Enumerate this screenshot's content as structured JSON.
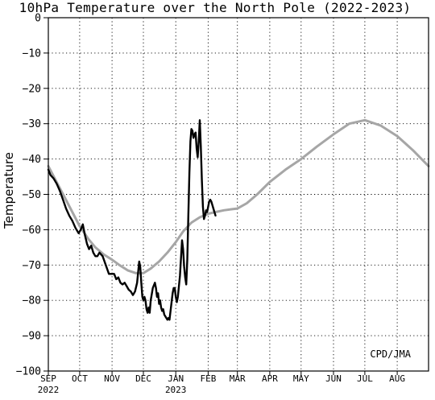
{
  "chart_data": {
    "type": "line",
    "title": "10hPa Temperature over the North Pole (2022-2023)",
    "xlabel": "",
    "ylabel": "Temperature",
    "ylim": [
      -100,
      0
    ],
    "yticks": [
      0,
      -10,
      -20,
      -30,
      -40,
      -50,
      -60,
      -70,
      -80,
      -90,
      -100
    ],
    "xlim": [
      "2022-09-01",
      "2023-08-31"
    ],
    "xticks": [
      {
        "date": "2022-09-01",
        "label": "SEP",
        "year": "2022"
      },
      {
        "date": "2022-10-01",
        "label": "OCT",
        "year": ""
      },
      {
        "date": "2022-11-01",
        "label": "NOV",
        "year": ""
      },
      {
        "date": "2022-12-01",
        "label": "DEC",
        "year": ""
      },
      {
        "date": "2023-01-01",
        "label": "JAN",
        "year": "2023"
      },
      {
        "date": "2023-02-01",
        "label": "FEB",
        "year": ""
      },
      {
        "date": "2023-03-01",
        "label": "MAR",
        "year": ""
      },
      {
        "date": "2023-04-01",
        "label": "APR",
        "year": ""
      },
      {
        "date": "2023-05-01",
        "label": "MAY",
        "year": ""
      },
      {
        "date": "2023-06-01",
        "label": "JUN",
        "year": ""
      },
      {
        "date": "2023-07-01",
        "label": "JUL",
        "year": ""
      },
      {
        "date": "2023-08-01",
        "label": "AUG",
        "year": ""
      }
    ],
    "grid": true,
    "credit": "CPD/JMA",
    "series": [
      {
        "color": "#a6a6a6",
        "x": [
          "2022-09-01",
          "2022-09-08",
          "2022-09-16",
          "2022-09-24",
          "2022-10-01",
          "2022-10-09",
          "2022-10-16",
          "2022-10-24",
          "2022-11-01",
          "2022-11-08",
          "2022-11-16",
          "2022-11-24",
          "2022-12-01",
          "2022-12-08",
          "2022-12-16",
          "2022-12-24",
          "2023-01-01",
          "2023-01-08",
          "2023-01-16",
          "2023-01-24",
          "2023-02-01",
          "2023-02-08",
          "2023-02-16",
          "2023-02-24",
          "2023-03-01",
          "2023-03-10",
          "2023-03-20",
          "2023-04-01",
          "2023-04-16",
          "2023-05-01",
          "2023-05-16",
          "2023-06-01",
          "2023-06-16",
          "2023-07-01",
          "2023-07-16",
          "2023-08-01",
          "2023-08-16",
          "2023-08-31"
        ],
        "values": [
          -42,
          -46,
          -50.5,
          -55,
          -59,
          -62.5,
          -65,
          -67,
          -68.5,
          -70,
          -71.5,
          -72.3,
          -72.3,
          -71,
          -69,
          -66.5,
          -63.5,
          -60.5,
          -58,
          -56.5,
          -55.5,
          -55,
          -54.5,
          -54.2,
          -54,
          -52.5,
          -50,
          -46.5,
          -43,
          -40,
          -36.5,
          -33,
          -30,
          -29,
          -30.5,
          -33.5,
          -37.5,
          -42
        ]
      },
      {
        "color": "#000000",
        "x": [
          "2022-09-01",
          "2022-09-03",
          "2022-09-06",
          "2022-09-09",
          "2022-09-12",
          "2022-09-15",
          "2022-09-18",
          "2022-09-21",
          "2022-09-24",
          "2022-09-27",
          "2022-09-30",
          "2022-10-02",
          "2022-10-04",
          "2022-10-06",
          "2022-10-08",
          "2022-10-10",
          "2022-10-12",
          "2022-10-14",
          "2022-10-16",
          "2022-10-18",
          "2022-10-20",
          "2022-10-23",
          "2022-10-26",
          "2022-10-29",
          "2022-11-01",
          "2022-11-03",
          "2022-11-05",
          "2022-11-07",
          "2022-11-09",
          "2022-11-11",
          "2022-11-13",
          "2022-11-15",
          "2022-11-17",
          "2022-11-19",
          "2022-11-21",
          "2022-11-23",
          "2022-11-25",
          "2022-11-26",
          "2022-11-27",
          "2022-11-28",
          "2022-11-29",
          "2022-11-30",
          "2022-12-01",
          "2022-12-02",
          "2022-12-03",
          "2022-12-04",
          "2022-12-05",
          "2022-12-06",
          "2022-12-07",
          "2022-12-08",
          "2022-12-10",
          "2022-12-12",
          "2022-12-13",
          "2022-12-14",
          "2022-12-15",
          "2022-12-16",
          "2022-12-17",
          "2022-12-18",
          "2022-12-19",
          "2022-12-20",
          "2022-12-21",
          "2022-12-22",
          "2022-12-23",
          "2022-12-24",
          "2022-12-25",
          "2022-12-26",
          "2022-12-27",
          "2022-12-28",
          "2022-12-29",
          "2022-12-30",
          "2022-12-31",
          "2023-01-01",
          "2023-01-02",
          "2023-01-03",
          "2023-01-04",
          "2023-01-05",
          "2023-01-06",
          "2023-01-07",
          "2023-01-08",
          "2023-01-09",
          "2023-01-10",
          "2023-01-11",
          "2023-01-12",
          "2023-01-13",
          "2023-01-14",
          "2023-01-15",
          "2023-01-16",
          "2023-01-17",
          "2023-01-18",
          "2023-01-19",
          "2023-01-20",
          "2023-01-21",
          "2023-01-22",
          "2023-01-23",
          "2023-01-24",
          "2023-01-25",
          "2023-01-26",
          "2023-01-27",
          "2023-01-28",
          "2023-01-29",
          "2023-01-30",
          "2023-01-31",
          "2023-02-01",
          "2023-02-02",
          "2023-02-03",
          "2023-02-04",
          "2023-02-05",
          "2023-02-06",
          "2023-02-07",
          "2023-02-08"
        ],
        "values": [
          -43,
          -44.5,
          -45.5,
          -47,
          -49,
          -51.5,
          -54,
          -56,
          -57.5,
          -59.5,
          -61,
          -60,
          -58.5,
          -61.5,
          -64,
          -65.5,
          -64.5,
          -66.5,
          -67.5,
          -67.5,
          -66.5,
          -67.5,
          -70,
          -72.5,
          -72.5,
          -72.5,
          -74,
          -73.5,
          -75,
          -75.5,
          -75,
          -76,
          -77,
          -77.5,
          -78.5,
          -77.5,
          -75,
          -72,
          -69,
          -70.5,
          -75,
          -79,
          -80,
          -79,
          -80,
          -82.5,
          -83.5,
          -82,
          -83.5,
          -80,
          -76.5,
          -75,
          -76.5,
          -79,
          -78,
          -81,
          -80,
          -82,
          -83,
          -82.5,
          -84,
          -84.5,
          -85,
          -85.5,
          -85,
          -85.5,
          -83,
          -80.5,
          -78,
          -76.5,
          -76.5,
          -79,
          -80.5,
          -79,
          -76,
          -73,
          -68,
          -63,
          -65.5,
          -70.5,
          -73.5,
          -75.5,
          -68.5,
          -56,
          -44,
          -35,
          -31.5,
          -32,
          -34,
          -33,
          -32.5,
          -37,
          -39.5,
          -35,
          -29,
          -36.5,
          -46,
          -53.5,
          -57,
          -56,
          -54.5,
          -55,
          -53.5,
          -52,
          -51.5,
          -52,
          -53,
          -54,
          -55,
          -56
        ]
      }
    ]
  }
}
